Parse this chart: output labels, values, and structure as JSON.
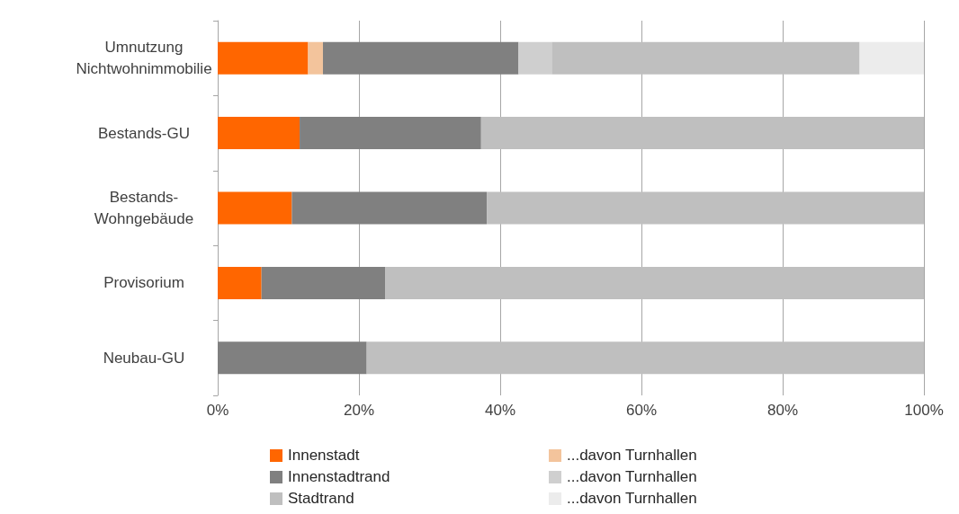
{
  "chart_data": {
    "type": "bar",
    "orientation": "horizontal",
    "stacked": true,
    "categories": [
      "Umnutzung\nNichtwohnimmobilie",
      "Bestands-GU",
      "Bestands-\nWohngebäude",
      "Provisorium",
      "Neubau-GU"
    ],
    "series": [
      {
        "name": "Innenstadt",
        "color": "#ff6600",
        "values": [
          12.8,
          11.6,
          10.5,
          6.2,
          0
        ]
      },
      {
        "name": "...davon Turnhallen",
        "color": "#f3c49c",
        "values": [
          2.1,
          0,
          0,
          0,
          0
        ]
      },
      {
        "name": "Innenstadtrand",
        "color": "#808080",
        "values": [
          27.7,
          25.7,
          27.6,
          17.5,
          21.1
        ]
      },
      {
        "name": "...davon Turnhallen",
        "color": "#cfcfcf",
        "values": [
          4.7,
          0,
          0,
          0,
          0
        ]
      },
      {
        "name": "Stadtrand",
        "color": "#bfbfbf",
        "values": [
          43.6,
          62.7,
          61.9,
          76.3,
          78.9
        ]
      },
      {
        "name": "...davon Turnhallen",
        "color": "#ececec",
        "values": [
          9.1,
          0,
          0,
          0,
          0
        ]
      }
    ],
    "xlim": [
      0,
      100
    ],
    "xticks": [
      {
        "value": 0,
        "label": "0%"
      },
      {
        "value": 20,
        "label": "20%"
      },
      {
        "value": 40,
        "label": "40%"
      },
      {
        "value": 60,
        "label": "60%"
      },
      {
        "value": 80,
        "label": "80%"
      },
      {
        "value": 100,
        "label": "100%"
      }
    ],
    "grid": "x",
    "legend": "bottom"
  }
}
